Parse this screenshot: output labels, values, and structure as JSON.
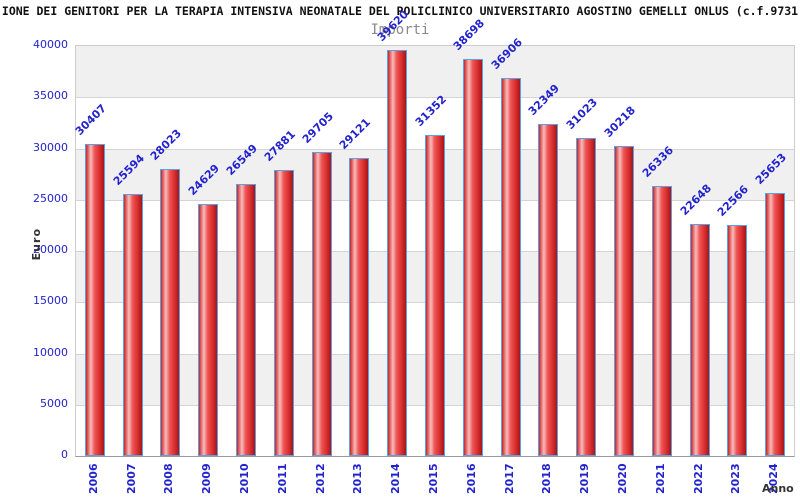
{
  "header": {
    "title": "IONE DEI GENITORI PER LA TERAPIA INTENSIVA NEONATALE DEL POLICLINICO UNIVERSITARIO AGOSTINO GEMELLI ONLUS (c.f.9731",
    "subtitle": "Importi"
  },
  "axes": {
    "y_title": "Euro",
    "x_title": "Anno",
    "y_ticks": [
      "40000",
      "35000",
      "30000",
      "25000",
      "20000",
      "15000",
      "10000",
      "5000",
      "0"
    ]
  },
  "chart_data": {
    "type": "bar",
    "title": "Importi",
    "xlabel": "Anno",
    "ylabel": "Euro",
    "categories": [
      "2006",
      "2007",
      "2008",
      "2009",
      "2010",
      "2011",
      "2012",
      "2013",
      "2014",
      "2015",
      "2016",
      "2017",
      "2018",
      "2019",
      "2020",
      "2021",
      "2022",
      "2023",
      "2024"
    ],
    "values": [
      30407,
      25594,
      28023,
      24629,
      26549,
      27881,
      29705,
      29121,
      39620,
      31352,
      38698,
      36906,
      32349,
      31023,
      30218,
      26336,
      22648,
      22566,
      25653
    ],
    "ylim": [
      0,
      40000
    ],
    "ytick_step": 5000,
    "grid": true,
    "legend": "none",
    "band_colors": [
      "#f0f0f0",
      "#ffffff"
    ]
  },
  "colors": {
    "label_blue": "#2323cc",
    "title_color": "#111111",
    "subtitle_gray": "#8a8a8a",
    "axis_title_color": "#333333",
    "grid_color": "#d4d4d4",
    "band_gray": "#f0f0f0",
    "bar_red_dark": "#c22828",
    "bar_red_light": "#f8bcbc",
    "bar_border_blue": "#5aa2e8"
  }
}
